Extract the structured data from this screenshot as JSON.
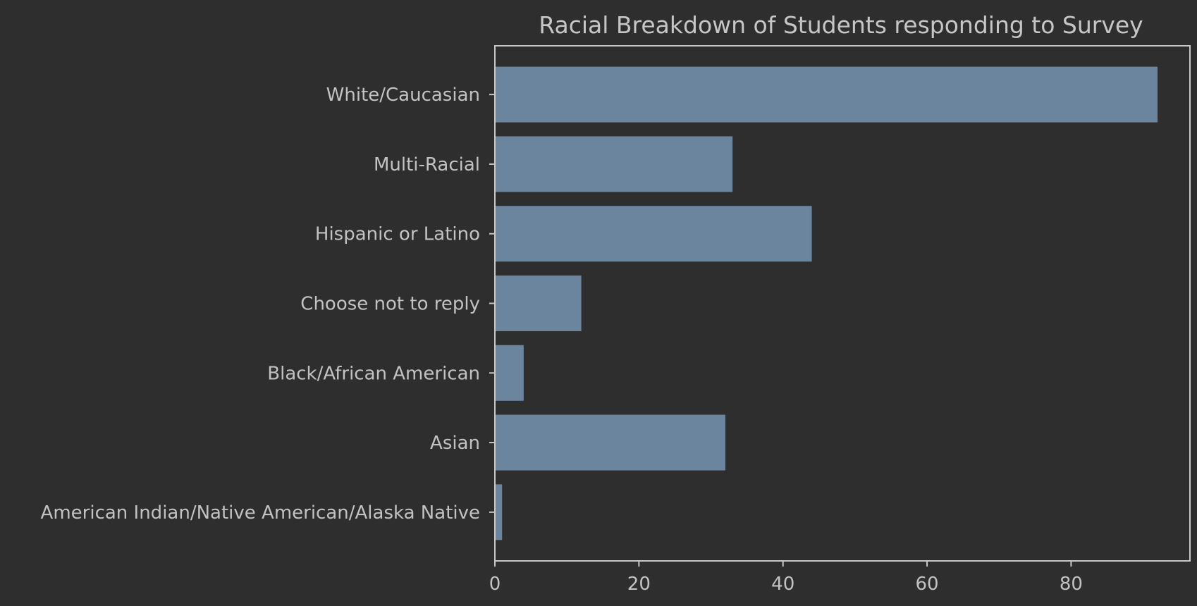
{
  "colors": {
    "background": "#2e2e2e",
    "bar": "#6b859e",
    "axis": "#c8c8c8",
    "text": "#c2c2c2"
  },
  "chart_data": {
    "type": "bar",
    "orientation": "horizontal",
    "title": "Racial Breakdown of Students responding to Survey",
    "xlabel": "",
    "ylabel": "",
    "categories": [
      "White/Caucasian",
      "Multi-Racial",
      "Hispanic or Latino",
      "Choose not to reply",
      "Black/African American",
      "Asian",
      "American Indian/Native American/Alaska Native"
    ],
    "values": [
      92,
      33,
      44,
      12,
      4,
      32,
      1
    ],
    "xlim": [
      0,
      96.5
    ],
    "xticks": [
      0,
      20,
      40,
      60,
      80
    ],
    "grid": false,
    "legend": "none"
  }
}
